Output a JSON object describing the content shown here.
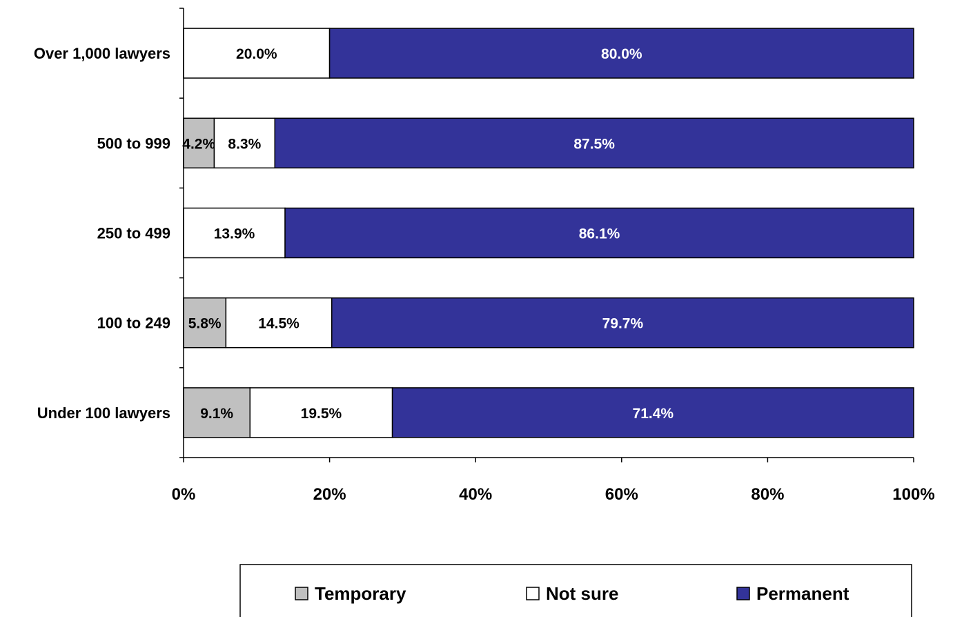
{
  "chart_data": {
    "type": "bar",
    "orientation": "horizontal",
    "stacked": true,
    "categories": [
      "Over 1,000 lawyers",
      "500 to 999",
      "250 to 499",
      "100 to 249",
      "Under 100 lawyers"
    ],
    "series": [
      {
        "name": "Temporary",
        "values": [
          0,
          4.2,
          0,
          5.8,
          9.1
        ],
        "labels": [
          "",
          "4.2%",
          "",
          "5.8%",
          "9.1%"
        ],
        "color": "#c0c0c0",
        "label_color": "#000000"
      },
      {
        "name": "Not sure",
        "values": [
          20.0,
          8.3,
          13.9,
          14.5,
          19.5
        ],
        "labels": [
          "20.0%",
          "8.3%",
          "13.9%",
          "14.5%",
          "19.5%"
        ],
        "color": "#ffffff",
        "label_color": "#000000"
      },
      {
        "name": "Permanent",
        "values": [
          80.0,
          87.5,
          86.1,
          79.7,
          71.4
        ],
        "labels": [
          "80.0%",
          "87.5%",
          "86.1%",
          "79.7%",
          "71.4%"
        ],
        "color": "#333399",
        "label_color": "#ffffff"
      }
    ],
    "xlim": [
      0,
      100
    ],
    "x_ticks": [
      0,
      20,
      40,
      60,
      80,
      100
    ],
    "x_tick_labels": [
      "0%",
      "20%",
      "40%",
      "60%",
      "80%",
      "100%"
    ],
    "title": "",
    "xlabel": "",
    "ylabel": "",
    "grid": false,
    "legend_position": "bottom"
  }
}
